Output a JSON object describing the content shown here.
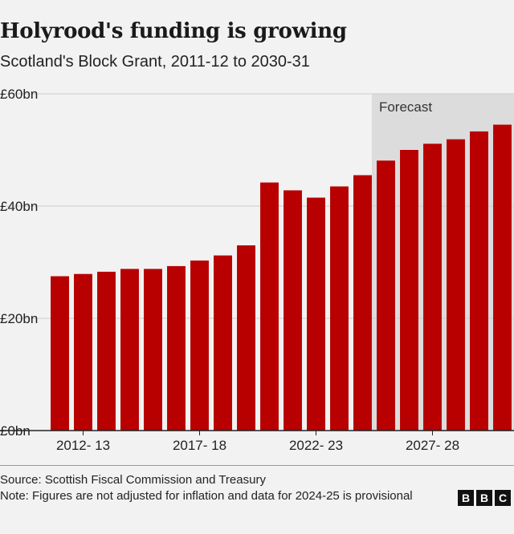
{
  "header": {
    "title": "Holyrood's funding is growing",
    "subtitle": "Scotland's Block Grant, 2011-12 to 2030-31"
  },
  "footer": {
    "source": "Source: Scottish Fiscal Commission and Treasury",
    "note": "Note: Figures are not adjusted for inflation and data for 2024-25 is provisional",
    "logo": [
      "B",
      "B",
      "C"
    ]
  },
  "colors": {
    "bar": "#b80000",
    "forecast_shade": "#dcdcdc",
    "grid": "#cccccc",
    "axis": "#222222"
  },
  "chart_data": {
    "type": "bar",
    "title": "",
    "xlabel": "",
    "ylabel": "",
    "unit": "£bn",
    "ylim": [
      0,
      60
    ],
    "yticks": [
      0,
      20,
      40,
      60
    ],
    "ytick_labels": [
      "£0bn",
      "£20bn",
      "£40bn",
      "£60bn"
    ],
    "grid": true,
    "categories": [
      "2011-12",
      "2012-13",
      "2013-14",
      "2014-15",
      "2015-16",
      "2016-17",
      "2017-18",
      "2018-19",
      "2019-20",
      "2020-21",
      "2021-22",
      "2022-23",
      "2023-24",
      "2024-25",
      "2025-26",
      "2026-27",
      "2027-28",
      "2028-29",
      "2029-30",
      "2030-31"
    ],
    "values": [
      27.5,
      27.9,
      28.3,
      28.8,
      28.8,
      29.3,
      30.3,
      31.2,
      33.0,
      44.2,
      42.8,
      41.5,
      43.5,
      45.5,
      48.1,
      50.0,
      51.1,
      51.9,
      53.3,
      54.5
    ],
    "xtick_labels": [
      {
        "category": "2012-13",
        "label": "2012- 13"
      },
      {
        "category": "2017-18",
        "label": "2017- 18"
      },
      {
        "category": "2022-23",
        "label": "2022- 23"
      },
      {
        "category": "2027-28",
        "label": "2027- 28"
      }
    ],
    "forecast": {
      "label": "Forecast",
      "start_category": "2025-26",
      "end_category": "2030-31"
    }
  }
}
